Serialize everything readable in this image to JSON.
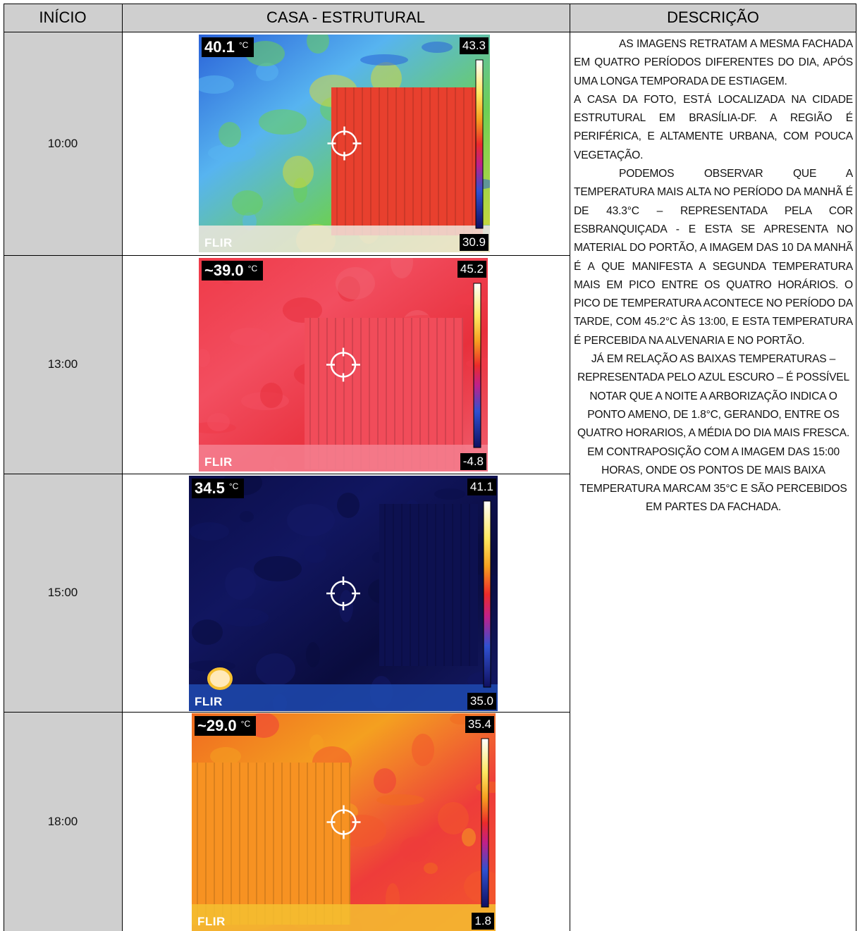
{
  "header": {
    "start": "INÍCIO",
    "house": "CASA - ESTRUTURAL",
    "description": "DESCRIÇÃO"
  },
  "rows": [
    {
      "time": "10:00",
      "spot": "40.1",
      "unit": "°C",
      "max": "43.3",
      "min": "30.9",
      "logo": "FLIR"
    },
    {
      "time": "13:00",
      "spot": "~39.0",
      "unit": "°C",
      "max": "45.2",
      "min": "-4.8",
      "logo": "FLIR"
    },
    {
      "time": "15:00",
      "spot": "34.5",
      "unit": "°C",
      "max": "41.1",
      "min": "35.0",
      "logo": "FLIR"
    },
    {
      "time": "18:00",
      "spot": "~29.0",
      "unit": "°C",
      "max": "35.4",
      "min": "1.8",
      "logo": "FLIR"
    }
  ],
  "description": [
    "AS IMAGENS RETRATAM A MESMA FACHADA EM QUATRO PERÍODOS DIFERENTES DO DIA, APÓS UMA LONGA TEMPORADA DE ESTIAGEM.",
    "A CASA DA FOTO, ESTÁ LOCALIZADA NA CIDADE ESTRUTURAL EM BRASÍLIA-DF. A REGIÃO É PERIFÉRICA, E ALTAMENTE URBANA, COM POUCA VEGETAÇÃO.",
    "PODEMOS OBSERVAR QUE A TEMPERATURA MAIS ALTA NO PERÍODO DA MANHÃ É DE 43.3°C – REPRESENTADA PELA COR ESBRANQUIÇADA - E ESTA SE APRESENTA NO MATERIAL DO PORTÃO, A IMAGEM DAS 10 DA MANHÃ É A QUE MANIFESTA A SEGUNDA TEMPERATURA MAIS EM PICO ENTRE OS QUATRO HORÁRIOS. O PICO DE TEMPERATURA ACONTECE NO PERÍODO DA TARDE, COM 45.2°C ÀS 13:00, E ESTA TEMPERATURA É PERCEBIDA NA ALVENARIA E NO PORTÃO.",
    "JÁ EM RELAÇÃO AS BAIXAS TEMPERATURAS – REPRESENTADA PELO AZUL ESCURO – É POSSÍVEL NOTAR QUE A NOITE  A ARBORIZAÇÃO INDICA O PONTO AMENO, DE 1.8°C, GERANDO, ENTRE OS QUATRO HORARIOS, A MÉDIA DO DIA MAIS FRESCA. EM CONTRAPOSIÇÃO COM A IMAGEM DAS 15:00 HORAS, ONDE OS PONTOS DE MAIS BAIXA TEMPERATURA MARCAM 35°C E SÃO PERCEBIDOS EM PARTES DA FACHADA."
  ]
}
